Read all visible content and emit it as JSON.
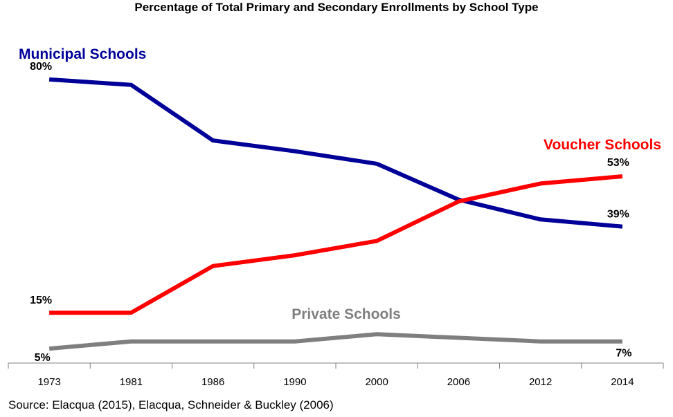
{
  "title": "Percentage of Total Primary and Secondary  Enrollments by School Type",
  "source": "Source: Elacqua (2015), Elacqua, Schneider & Buckley  (2006)",
  "chart_data": {
    "type": "line",
    "categories": [
      "1973",
      "1981",
      "1986",
      "1990",
      "2000",
      "2006",
      "2012",
      "2014"
    ],
    "ylim": [
      0,
      90
    ],
    "grid": false,
    "series": [
      {
        "name": "Municipal Schools",
        "color": "#000099",
        "values": [
          80,
          78.5,
          63,
          60,
          56.5,
          46.5,
          41,
          39
        ]
      },
      {
        "name": "Voucher Schools",
        "color": "#ff0000",
        "values": [
          15,
          15,
          28,
          31,
          35,
          46,
          51,
          53
        ]
      },
      {
        "name": "Private Schools",
        "color": "#7f7f7f",
        "values": [
          5,
          7,
          7,
          7,
          9,
          8,
          7,
          7
        ]
      }
    ],
    "data_labels": [
      {
        "series": 0,
        "index": 0,
        "text": "80%"
      },
      {
        "series": 0,
        "index": 7,
        "text": "39%"
      },
      {
        "series": 1,
        "index": 0,
        "text": "15%"
      },
      {
        "series": 1,
        "index": 7,
        "text": "53%"
      },
      {
        "series": 2,
        "index": 0,
        "text": "5%"
      },
      {
        "series": 2,
        "index": 7,
        "text": "7%"
      }
    ]
  }
}
